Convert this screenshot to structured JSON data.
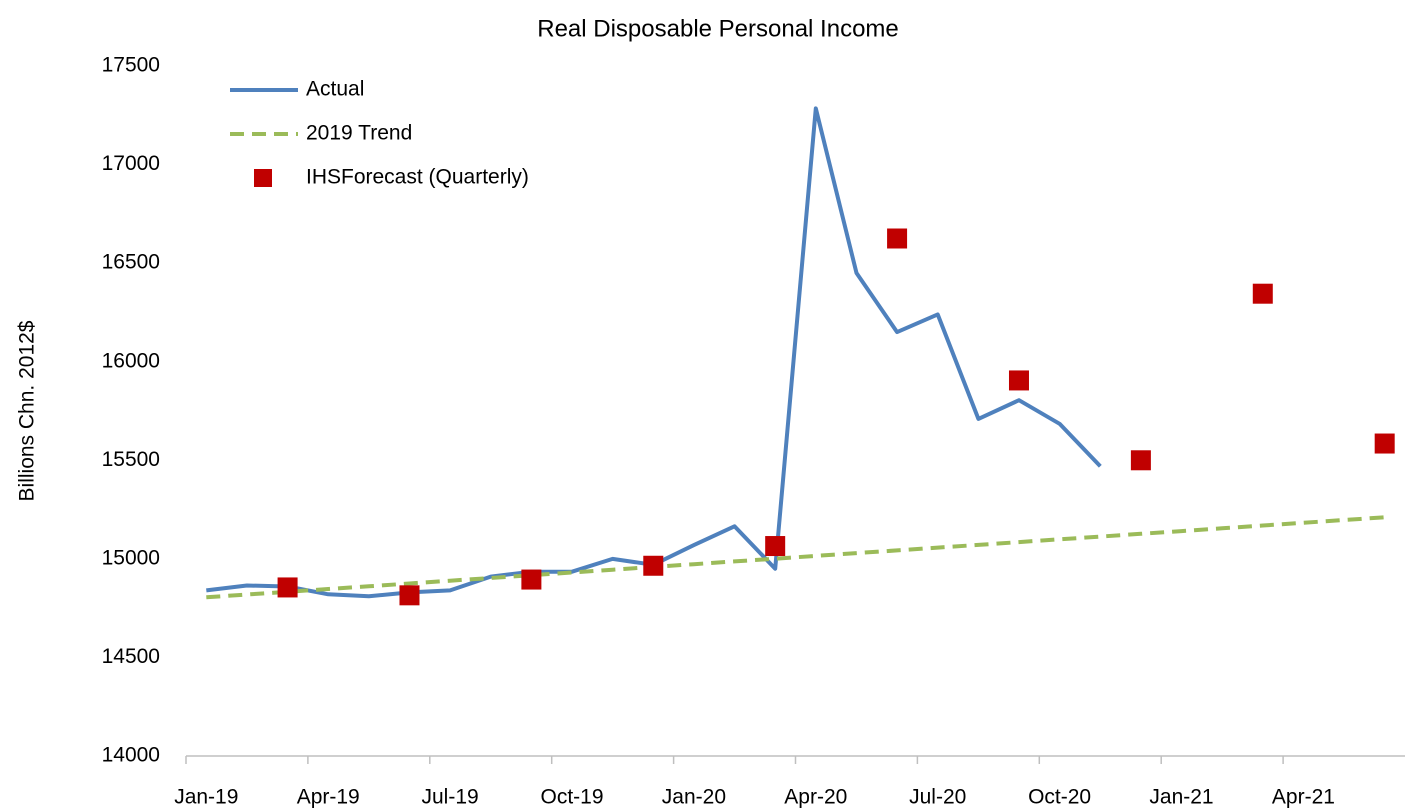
{
  "chart_data": {
    "type": "line",
    "title": "Real Disposable Personal Income",
    "y_label": "Billions Chn. 2012$",
    "categories": [
      "Jan-19",
      null,
      null,
      "Apr-19",
      null,
      null,
      "Jul-19",
      null,
      null,
      "Oct-19",
      null,
      null,
      "Jan-20",
      null,
      null,
      "Apr-20",
      null,
      null,
      "Jul-20",
      null,
      null,
      "Oct-20",
      null,
      null,
      "Jan-21",
      null,
      null,
      "Apr-21",
      null,
      null
    ],
    "series": [
      {
        "name": "Actual",
        "color": "#4f81bd",
        "style": "solid",
        "values": [
          14840,
          14865,
          14860,
          14820,
          14810,
          14830,
          14840,
          14910,
          14935,
          14935,
          15000,
          14970,
          15070,
          15165,
          14950,
          17285,
          16450,
          16150,
          16240,
          15710,
          15805,
          15685,
          15470,
          null,
          null,
          null,
          null,
          null,
          null,
          null
        ]
      },
      {
        "name": "2019 Trend",
        "color": "#9bbb59",
        "style": "dashed",
        "values": [
          14805,
          14819,
          14833,
          14847,
          14861,
          14875,
          14889,
          14903,
          14917,
          14931,
          14945,
          14959,
          14973,
          14987,
          15001,
          15015,
          15029,
          15043,
          15057,
          15071,
          15085,
          15099,
          15113,
          15127,
          15141,
          15155,
          15169,
          15183,
          15197,
          15211
        ]
      },
      {
        "name": "IHSForecast (Quarterly)",
        "color": "#c00000",
        "style": "marker",
        "values": [
          null,
          null,
          14855,
          null,
          null,
          14815,
          null,
          null,
          14895,
          null,
          null,
          14965,
          null,
          null,
          15065,
          null,
          null,
          16625,
          null,
          null,
          15905,
          null,
          null,
          15500,
          null,
          null,
          16345,
          null,
          null,
          15585
        ]
      }
    ],
    "ylim": [
      14000,
      17500
    ],
    "yticks": [
      14000,
      14500,
      15000,
      15500,
      16000,
      16500,
      17000,
      17500
    ],
    "legend": "upper left"
  }
}
